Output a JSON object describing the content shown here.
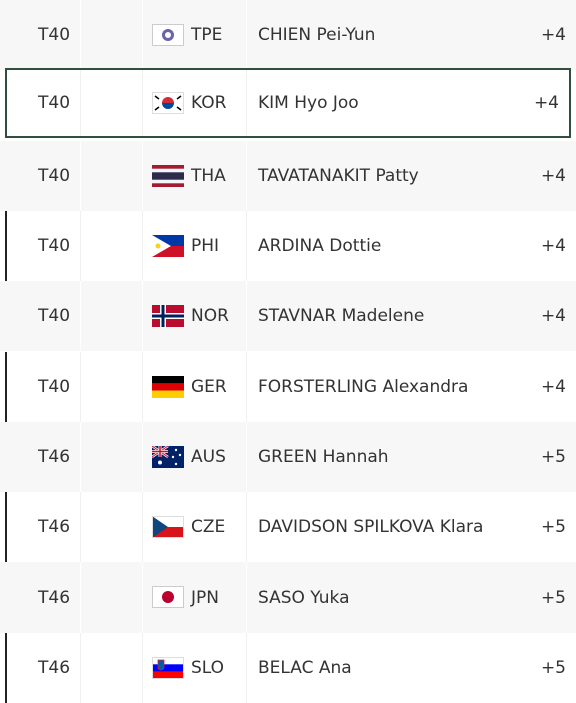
{
  "rows": [
    {
      "position": "T40",
      "country": "TPE",
      "name": "CHIEN Pei-Yun",
      "score": "+4"
    },
    {
      "position": "T40",
      "country": "KOR",
      "name": "KIM Hyo Joo",
      "score": "+4"
    },
    {
      "position": "T40",
      "country": "THA",
      "name": "TAVATANAKIT Patty",
      "score": "+4"
    },
    {
      "position": "T40",
      "country": "PHI",
      "name": "ARDINA Dottie",
      "score": "+4"
    },
    {
      "position": "T40",
      "country": "NOR",
      "name": "STAVNAR Madelene",
      "score": "+4"
    },
    {
      "position": "T40",
      "country": "GER",
      "name": "FORSTERLING Alexandra",
      "score": "+4"
    },
    {
      "position": "T46",
      "country": "AUS",
      "name": "GREEN Hannah",
      "score": "+5"
    },
    {
      "position": "T46",
      "country": "CZE",
      "name": "DAVIDSON SPILKOVA Klara",
      "score": "+5"
    },
    {
      "position": "T46",
      "country": "JPN",
      "name": "SASO Yuka",
      "score": "+5"
    },
    {
      "position": "T46",
      "country": "SLO",
      "name": "BELAC Ana",
      "score": "+5"
    }
  ]
}
